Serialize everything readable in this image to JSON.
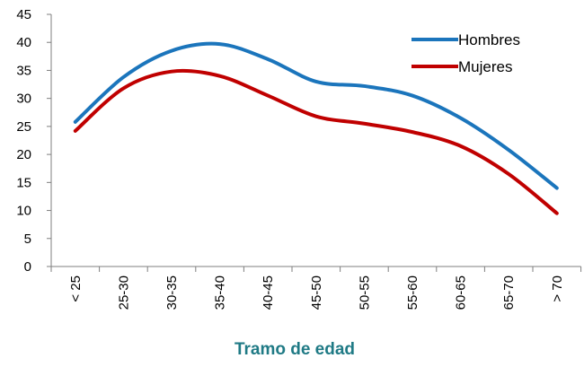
{
  "chart_data": {
    "type": "line",
    "xlabel": "Tramo de edad",
    "categories": [
      "< 25",
      "25-30",
      "30-35",
      "35-40",
      "40-45",
      "45-50",
      "50-55",
      "55-60",
      "60-65",
      "65-70",
      "> 70"
    ],
    "series": [
      {
        "name": "Hombres",
        "color": "#1b75bc",
        "values": [
          25.8,
          33.8,
          38.5,
          39.7,
          37,
          33,
          32.2,
          30.5,
          26.5,
          20.8,
          14
        ]
      },
      {
        "name": "Mujeres",
        "color": "#c00000",
        "values": [
          24.2,
          31.8,
          34.8,
          34,
          30.5,
          26.8,
          25.5,
          24,
          21.5,
          16.5,
          9.5
        ]
      }
    ],
    "ylim": [
      0,
      45
    ],
    "yticks": [
      0,
      5,
      10,
      15,
      20,
      25,
      30,
      35,
      40,
      45
    ],
    "smooth": true,
    "legend": "upper right"
  }
}
